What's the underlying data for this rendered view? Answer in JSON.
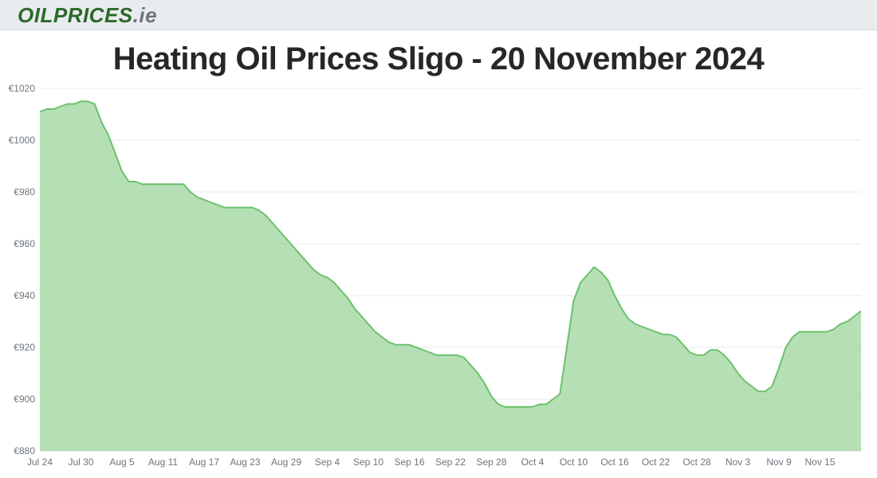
{
  "logo": {
    "part1": "OILPRICES",
    "part2": ".ie"
  },
  "title": "Heating Oil Prices Sligo - 20 November 2024",
  "chart": {
    "type": "area",
    "ylim": [
      880,
      1020
    ],
    "ytick_step": 20,
    "y_prefix": "€",
    "line_color": "#6bc16b",
    "fill_color": "#99d299",
    "fill_opacity": 0.72,
    "line_width": 2,
    "grid_color": "#e9e9e9",
    "background_color": "#ffffff",
    "axis_label_color": "#6c757d",
    "axis_fontsize": 12,
    "title_fontsize": 40,
    "x_labels": [
      "Jul 24",
      "Jul 30",
      "Aug 5",
      "Aug 11",
      "Aug 17",
      "Aug 23",
      "Aug 29",
      "Sep 4",
      "Sep 10",
      "Sep 16",
      "Sep 22",
      "Sep 28",
      "Oct 4",
      "Oct 10",
      "Oct 16",
      "Oct 22",
      "Oct 28",
      "Nov 3",
      "Nov 9",
      "Nov 15"
    ],
    "series": [
      1011,
      1012,
      1012,
      1013,
      1014,
      1014,
      1015,
      1015,
      1014,
      1007,
      1002,
      995,
      988,
      984,
      984,
      983,
      983,
      983,
      983,
      983,
      983,
      983,
      980,
      978,
      977,
      976,
      975,
      974,
      974,
      974,
      974,
      974,
      973,
      971,
      968,
      965,
      962,
      959,
      956,
      953,
      950,
      948,
      947,
      945,
      942,
      939,
      935,
      932,
      929,
      926,
      924,
      922,
      921,
      921,
      921,
      920,
      919,
      918,
      917,
      917,
      917,
      917,
      916,
      913,
      910,
      906,
      901,
      898,
      897,
      897,
      897,
      897,
      897,
      898,
      898,
      900,
      902,
      920,
      938,
      945,
      948,
      951,
      949,
      946,
      940,
      935,
      931,
      929,
      928,
      927,
      926,
      925,
      925,
      924,
      921,
      918,
      917,
      917,
      919,
      919,
      917,
      914,
      910,
      907,
      905,
      903,
      903,
      905,
      912,
      920,
      924,
      926,
      926,
      926,
      926,
      926,
      927,
      929,
      930,
      932,
      934
    ]
  }
}
